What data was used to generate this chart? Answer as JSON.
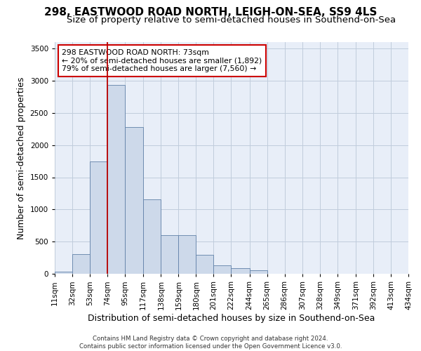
{
  "title": "298, EASTWOOD ROAD NORTH, LEIGH-ON-SEA, SS9 4LS",
  "subtitle": "Size of property relative to semi-detached houses in Southend-on-Sea",
  "xlabel": "Distribution of semi-detached houses by size in Southend-on-Sea",
  "ylabel": "Number of semi-detached properties",
  "footer_line1": "Contains HM Land Registry data © Crown copyright and database right 2024.",
  "footer_line2": "Contains public sector information licensed under the Open Government Licence v3.0.",
  "annotation_line1": "298 EASTWOOD ROAD NORTH: 73sqm",
  "annotation_line2": "← 20% of semi-detached houses are smaller (1,892)",
  "annotation_line3": "79% of semi-detached houses are larger (7,560) →",
  "property_size": 73,
  "bar_left_edges": [
    11,
    32,
    53,
    74,
    95,
    117,
    138,
    159,
    180,
    201,
    222,
    244,
    265,
    286,
    307,
    328,
    349,
    371,
    392,
    413
  ],
  "bar_widths": [
    21,
    21,
    21,
    21,
    22,
    21,
    21,
    21,
    21,
    21,
    22,
    21,
    21,
    21,
    21,
    21,
    22,
    21,
    21,
    21
  ],
  "bar_heights": [
    30,
    310,
    1750,
    2930,
    2280,
    1160,
    600,
    600,
    290,
    135,
    90,
    55,
    0,
    0,
    0,
    0,
    0,
    0,
    0,
    0
  ],
  "bar_color": "#cdd9ea",
  "bar_edge_color": "#6080a8",
  "vline_color": "#bb0000",
  "vline_x": 74,
  "ylim": [
    0,
    3600
  ],
  "yticks": [
    0,
    500,
    1000,
    1500,
    2000,
    2500,
    3000,
    3500
  ],
  "grid_color": "#c0ccdc",
  "plot_bg_color": "#e8eef8",
  "tick_labels": [
    "11sqm",
    "32sqm",
    "53sqm",
    "74sqm",
    "95sqm",
    "117sqm",
    "138sqm",
    "159sqm",
    "180sqm",
    "201sqm",
    "222sqm",
    "244sqm",
    "265sqm",
    "286sqm",
    "307sqm",
    "328sqm",
    "349sqm",
    "371sqm",
    "392sqm",
    "413sqm",
    "434sqm"
  ],
  "title_fontsize": 11,
  "subtitle_fontsize": 9.5,
  "tick_label_size": 7.5,
  "axis_label_size": 9
}
